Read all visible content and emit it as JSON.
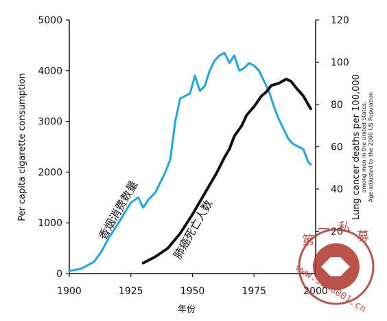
{
  "chart_data": {
    "type": "line",
    "xlabel": "年份",
    "ylabel_left": "Per capita cigarette consumption",
    "ylabel_right": "Lung cancer deaths per 100,000",
    "ylabel_right_note_1": "among men in the United States,",
    "ylabel_right_note_2": "Age-adjusted to the 2000 US Population",
    "xlim": [
      1900,
      2000
    ],
    "ylim_left": [
      0,
      5000
    ],
    "ylim_right": [
      0,
      120
    ],
    "x_ticks": [
      "1900",
      "1925",
      "1950",
      "1975",
      "2000"
    ],
    "y_ticks_left": [
      "0",
      "1000",
      "2000",
      "3000",
      "4000",
      "5000"
    ],
    "y_ticks_right": [
      "20",
      "40",
      "60",
      "80",
      "100",
      "120"
    ],
    "grid": false,
    "series": [
      {
        "name": "香烟消费数量",
        "axis": "left",
        "color": "#1ea6e0",
        "points": [
          [
            1900,
            50
          ],
          [
            1905,
            100
          ],
          [
            1910,
            230
          ],
          [
            1913,
            430
          ],
          [
            1916,
            700
          ],
          [
            1920,
            1000
          ],
          [
            1925,
            1400
          ],
          [
            1928,
            1500
          ],
          [
            1930,
            1300
          ],
          [
            1932,
            1450
          ],
          [
            1935,
            1600
          ],
          [
            1937,
            1800
          ],
          [
            1939,
            2000
          ],
          [
            1941,
            2250
          ],
          [
            1943,
            3000
          ],
          [
            1945,
            3450
          ],
          [
            1947,
            3500
          ],
          [
            1949,
            3550
          ],
          [
            1951,
            3900
          ],
          [
            1953,
            3600
          ],
          [
            1955,
            3700
          ],
          [
            1957,
            4000
          ],
          [
            1959,
            4200
          ],
          [
            1961,
            4300
          ],
          [
            1963,
            4350
          ],
          [
            1965,
            4150
          ],
          [
            1967,
            4300
          ],
          [
            1969,
            4000
          ],
          [
            1971,
            4050
          ],
          [
            1973,
            4150
          ],
          [
            1975,
            4100
          ],
          [
            1977,
            4000
          ],
          [
            1979,
            3800
          ],
          [
            1981,
            3600
          ],
          [
            1983,
            3300
          ],
          [
            1985,
            3050
          ],
          [
            1987,
            2850
          ],
          [
            1989,
            2650
          ],
          [
            1991,
            2550
          ],
          [
            1993,
            2500
          ],
          [
            1995,
            2450
          ],
          [
            1997,
            2200
          ],
          [
            1998,
            2150
          ]
        ]
      },
      {
        "name": "肺癌死亡人数",
        "axis": "right",
        "color": "#111111",
        "points": [
          [
            1930,
            5
          ],
          [
            1935,
            8
          ],
          [
            1940,
            12
          ],
          [
            1945,
            19
          ],
          [
            1950,
            28
          ],
          [
            1955,
            38
          ],
          [
            1960,
            48
          ],
          [
            1963,
            55
          ],
          [
            1965,
            59
          ],
          [
            1967,
            65
          ],
          [
            1970,
            70
          ],
          [
            1972,
            75
          ],
          [
            1975,
            79
          ],
          [
            1978,
            84
          ],
          [
            1980,
            86
          ],
          [
            1982,
            89
          ],
          [
            1985,
            90
          ],
          [
            1988,
            92
          ],
          [
            1990,
            91
          ],
          [
            1992,
            88
          ],
          [
            1995,
            84
          ],
          [
            1998,
            78
          ]
        ]
      }
    ]
  },
  "watermark": {
    "text": "www.SiMu001.cn",
    "chars": [
      "第",
      "一",
      "私",
      "募"
    ],
    "color": "#b0362c"
  }
}
